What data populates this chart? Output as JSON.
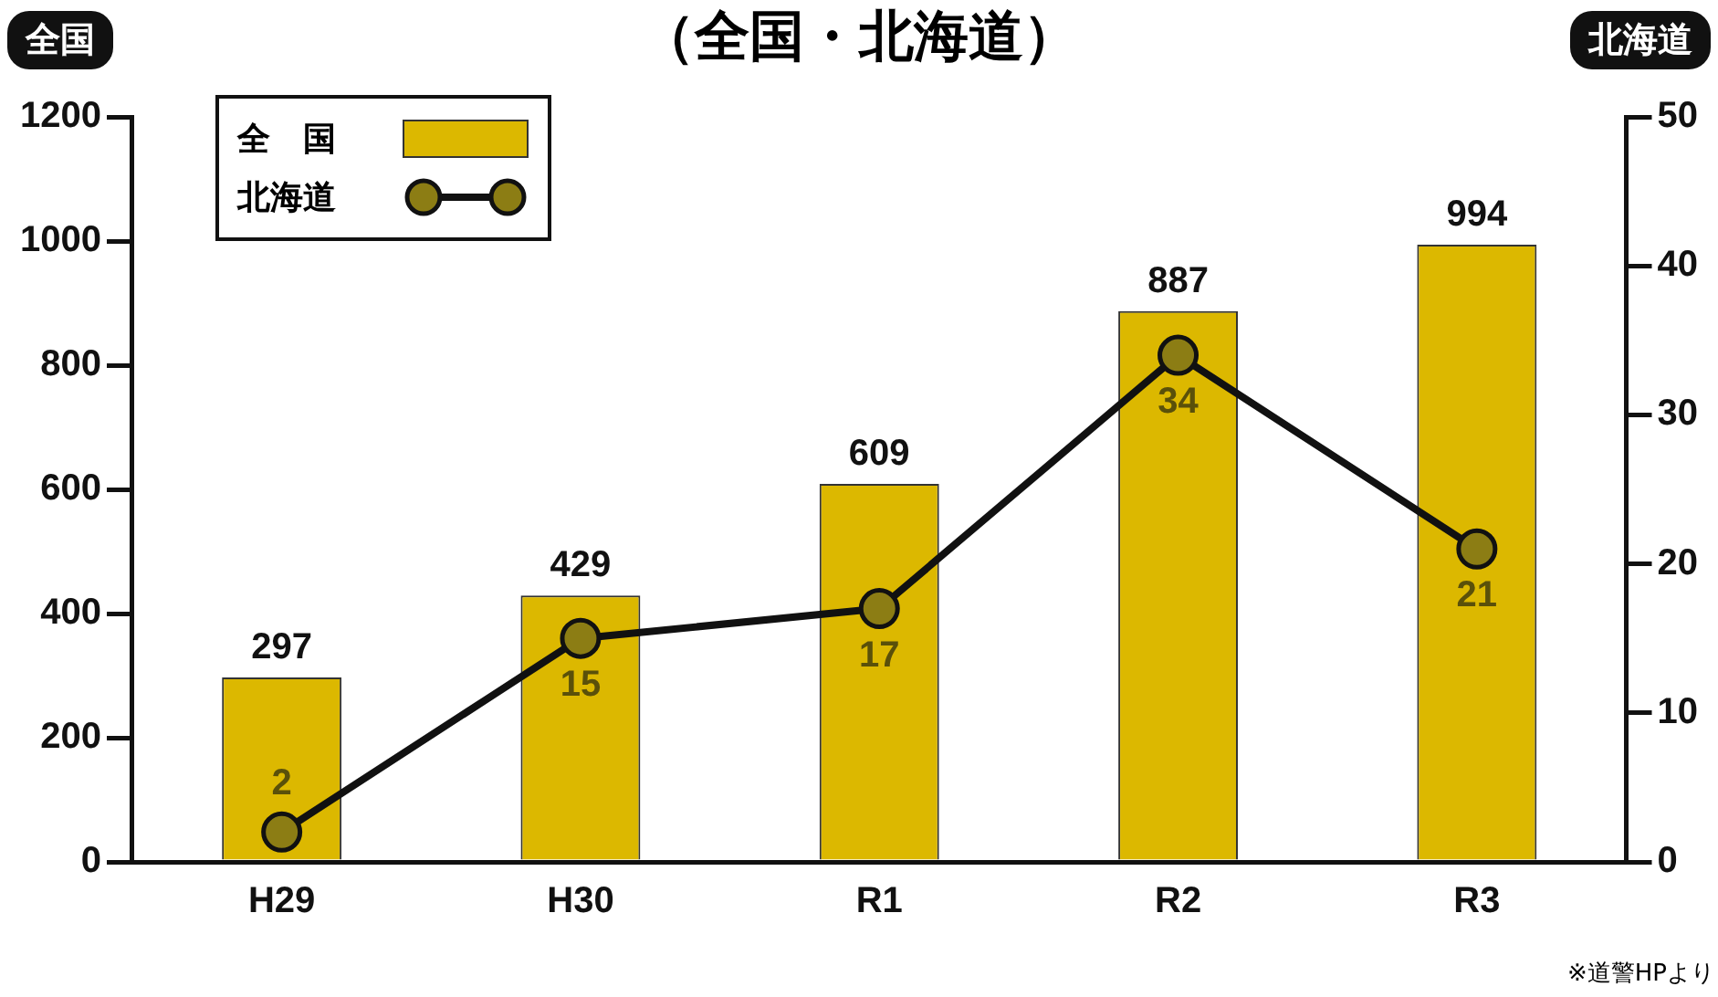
{
  "chart_data": {
    "type": "bar",
    "title": "（全国・北海道）",
    "ylabel": "全国",
    "y2label": "北海道",
    "categories": [
      "H29",
      "H30",
      "R1",
      "R2",
      "R3"
    ],
    "series": [
      {
        "name": "全　国",
        "color": "#dcb800",
        "values": [
          297,
          429,
          609,
          887,
          994
        ]
      },
      {
        "name": "北海道",
        "type": "line",
        "axis": "y2",
        "color": "#8c7d14",
        "values": [
          2,
          15,
          17,
          34,
          21
        ]
      }
    ],
    "ylim": [
      0,
      1200
    ],
    "yticks": [
      0,
      200,
      400,
      600,
      800,
      1000,
      1200
    ],
    "y2lim": [
      0,
      50
    ],
    "y2ticks": [
      0,
      10,
      20,
      30,
      40,
      50
    ],
    "data_labels": true,
    "grid": false,
    "legend": "top left",
    "marker": "circle",
    "line_style": "solid",
    "annotations": [
      "※道警HPより"
    ]
  }
}
